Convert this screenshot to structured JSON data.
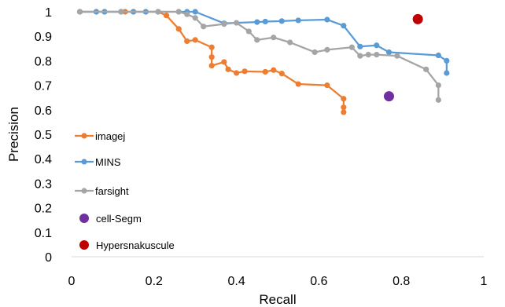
{
  "chart_data": {
    "type": "scatter",
    "title": "",
    "xlabel": "Recall",
    "ylabel": "Precision",
    "xlim": [
      0,
      1
    ],
    "ylim": [
      0,
      1
    ],
    "x_ticks": [
      "0",
      "0.2",
      "0.4",
      "0.6",
      "0.8",
      "1"
    ],
    "x_tick_values": [
      0,
      0.2,
      0.4,
      0.6,
      0.8,
      1
    ],
    "y_ticks": [
      "0",
      "0.1",
      "0.2",
      "0.3",
      "0.4",
      "0.5",
      "0.6",
      "0.7",
      "0.8",
      "0.9",
      "1"
    ],
    "y_tick_values": [
      0,
      0.1,
      0.2,
      0.3,
      0.4,
      0.5,
      0.6,
      0.7,
      0.8,
      0.9,
      1
    ],
    "grid": false,
    "legend_position": "left",
    "series": [
      {
        "name": "imagej",
        "color": "#ED7D31",
        "mode": "line-markers",
        "x": [
          0.02,
          0.06,
          0.08,
          0.12,
          0.13,
          0.15,
          0.18,
          0.21,
          0.23,
          0.26,
          0.28,
          0.3,
          0.34,
          0.34,
          0.34,
          0.37,
          0.38,
          0.4,
          0.42,
          0.47,
          0.49,
          0.51,
          0.55,
          0.62,
          0.66,
          0.66,
          0.66
        ],
        "y": [
          1.0,
          1.0,
          1.0,
          1.0,
          1.0,
          1.0,
          1.0,
          1.0,
          0.985,
          0.93,
          0.88,
          0.885,
          0.855,
          0.815,
          0.78,
          0.795,
          0.765,
          0.75,
          0.757,
          0.755,
          0.762,
          0.748,
          0.705,
          0.7,
          0.645,
          0.61,
          0.59
        ]
      },
      {
        "name": "MINS",
        "color": "#5B9BD5",
        "mode": "line-markers",
        "x": [
          0.02,
          0.06,
          0.08,
          0.12,
          0.15,
          0.18,
          0.21,
          0.26,
          0.28,
          0.3,
          0.37,
          0.45,
          0.47,
          0.51,
          0.55,
          0.62,
          0.66,
          0.7,
          0.74,
          0.77,
          0.89,
          0.91,
          0.91
        ],
        "y": [
          1.0,
          1.0,
          1.0,
          1.0,
          1.0,
          1.0,
          1.0,
          1.0,
          1.0,
          1.0,
          0.953,
          0.958,
          0.96,
          0.962,
          0.965,
          0.968,
          0.943,
          0.858,
          0.863,
          0.835,
          0.822,
          0.8,
          0.75
        ]
      },
      {
        "name": "farsight",
        "color": "#A5A5A5",
        "mode": "line-markers",
        "x": [
          0.02,
          0.12,
          0.21,
          0.26,
          0.28,
          0.3,
          0.32,
          0.37,
          0.4,
          0.43,
          0.45,
          0.49,
          0.53,
          0.59,
          0.62,
          0.68,
          0.7,
          0.72,
          0.74,
          0.79,
          0.86,
          0.89,
          0.89
        ],
        "y": [
          1.0,
          1.0,
          1.0,
          1.0,
          0.99,
          0.975,
          0.94,
          0.95,
          0.955,
          0.92,
          0.885,
          0.895,
          0.875,
          0.835,
          0.845,
          0.855,
          0.82,
          0.825,
          0.825,
          0.82,
          0.765,
          0.7,
          0.64
        ]
      },
      {
        "name": "cell-Segm",
        "color": "#7030A0",
        "mode": "single",
        "x": [
          0.77
        ],
        "y": [
          0.655
        ]
      },
      {
        "name": "Hypersnakuscule",
        "color": "#C00000",
        "mode": "single",
        "x": [
          0.84
        ],
        "y": [
          0.97
        ]
      }
    ]
  }
}
